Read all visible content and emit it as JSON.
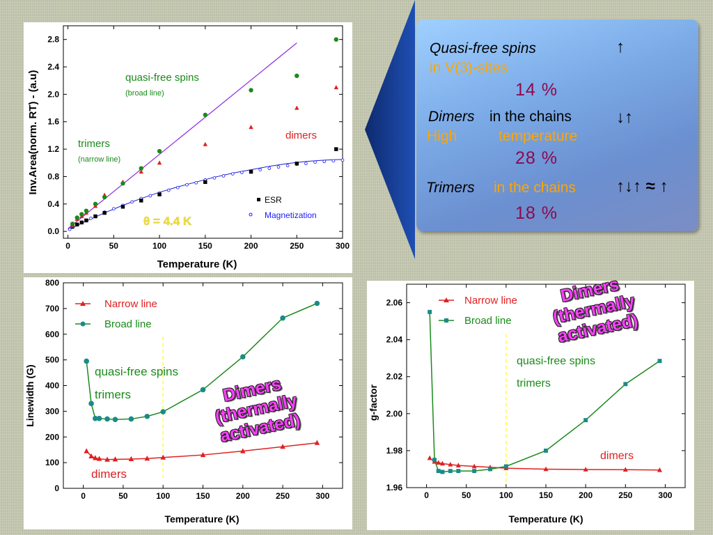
{
  "info_box": {
    "line1_italic": "Quasi-free spins",
    "line2_orange": "in V(3)-sites",
    "pct1": "14 %",
    "line3_italic": "Dimers",
    "line3_rest": "in the chains",
    "line4_a": "High",
    "line4_b": "temperature",
    "pct2": "28 %",
    "line5_italic": "Trimers",
    "line5_orange": "in the chains",
    "pct3": "18 %",
    "arrow1": "↑",
    "arrow2": "↓↑",
    "arrow3": "↑↓↑ ≈ ↑",
    "colors": {
      "italic": "#000000",
      "orange": "#ffa500",
      "percent": "#8b0a4e"
    }
  },
  "overlays": {
    "right": [
      "Dimers",
      "(thermally",
      "activated)"
    ],
    "middle": [
      "Dimers",
      "(thermally",
      "activated)"
    ],
    "color": "#ff40ff"
  },
  "chart_data": [
    {
      "type": "scatter",
      "xlabel": "Temperature (K)",
      "ylabel": "Inv.Area(norm. RT) - (a.u)",
      "xlim": [
        -5,
        300
      ],
      "ylim": [
        -0.1,
        3.0
      ],
      "xticks": [
        0,
        50,
        100,
        150,
        200,
        250,
        300
      ],
      "yticks": [
        0.0,
        0.4,
        0.8,
        1.2,
        1.6,
        2.0,
        2.4,
        2.8
      ],
      "annotations": {
        "quasi_free": "quasi-free spins",
        "broad": "(broad line)",
        "trimers": "trimers",
        "narrow": "(narrow line)",
        "dimers": "dimers",
        "theta": "θ = 4.4 K"
      },
      "legend": {
        "esr": "ESR",
        "mag": "Magnetization",
        "placement": "bottom-right"
      },
      "series": [
        {
          "name": "ESR",
          "marker": "square",
          "color": "#000000",
          "x": [
            5,
            10,
            15,
            20,
            30,
            40,
            60,
            80,
            100,
            150,
            200,
            250,
            293
          ],
          "y": [
            0.07,
            0.1,
            0.13,
            0.16,
            0.22,
            0.27,
            0.36,
            0.45,
            0.54,
            0.72,
            0.87,
            0.99,
            1.2
          ]
        },
        {
          "name": "Magnetization",
          "marker": "open-circle",
          "color": "#1a1aff",
          "x": [
            2,
            5,
            10,
            15,
            20,
            25,
            30,
            40,
            50,
            60,
            70,
            80,
            90,
            100,
            110,
            120,
            130,
            140,
            150,
            160,
            170,
            180,
            190,
            200,
            210,
            220,
            230,
            240,
            250,
            260,
            270,
            280,
            290,
            300
          ],
          "y": [
            0.03,
            0.06,
            0.1,
            0.13,
            0.16,
            0.19,
            0.22,
            0.28,
            0.33,
            0.38,
            0.43,
            0.48,
            0.52,
            0.56,
            0.6,
            0.64,
            0.68,
            0.71,
            0.75,
            0.78,
            0.81,
            0.84,
            0.86,
            0.88,
            0.9,
            0.92,
            0.94,
            0.96,
            0.98,
            0.99,
            1.01,
            1.02,
            1.03,
            1.04
          ]
        },
        {
          "name": "quasi-free spins",
          "marker": "circle",
          "color": "#1a8a1a",
          "x": [
            5,
            10,
            15,
            20,
            30,
            40,
            60,
            80,
            100,
            150,
            200,
            250,
            293
          ],
          "y": [
            0.11,
            0.2,
            0.25,
            0.3,
            0.4,
            0.5,
            0.7,
            0.92,
            1.17,
            1.7,
            2.06,
            2.27,
            2.8
          ]
        },
        {
          "name": "dimers",
          "marker": "triangle",
          "color": "#e02020",
          "x": [
            5,
            10,
            15,
            20,
            30,
            40,
            60,
            80,
            100,
            150,
            200,
            250,
            293
          ],
          "y": [
            0.08,
            0.18,
            0.22,
            0.27,
            0.37,
            0.53,
            0.72,
            0.87,
            1.0,
            1.27,
            1.52,
            1.8,
            2.1
          ]
        }
      ],
      "fits": [
        {
          "name": "linear fit",
          "color": "#8a2be2",
          "x": [
            0,
            250
          ],
          "y": [
            0.04,
            2.75
          ]
        },
        {
          "name": "magnetization fit",
          "color": "#1a1acc",
          "x": [
            0,
            20,
            40,
            60,
            80,
            100,
            120,
            140,
            160,
            180,
            200,
            220,
            240,
            260,
            280,
            300
          ],
          "y": [
            0.02,
            0.15,
            0.27,
            0.38,
            0.48,
            0.57,
            0.65,
            0.72,
            0.79,
            0.85,
            0.9,
            0.95,
            0.99,
            1.02,
            1.04,
            1.05
          ]
        }
      ]
    },
    {
      "type": "line",
      "xlabel": "Temperature (K)",
      "ylabel": "Linewidth (G)",
      "xlim": [
        -25,
        325
      ],
      "ylim": [
        0,
        800
      ],
      "xticks": [
        0,
        50,
        100,
        150,
        200,
        250,
        300
      ],
      "yticks": [
        0,
        100,
        200,
        300,
        400,
        500,
        600,
        700,
        800
      ],
      "annotations": {
        "quasi_free": "quasi-free spins",
        "trimers": "trimers",
        "dimers": "dimers"
      },
      "legend": {
        "placement": "top-left"
      },
      "vline_x": 100,
      "series": [
        {
          "name": "Narrow line",
          "marker": "triangle",
          "color": "#e02020",
          "x": [
            4,
            10,
            15,
            20,
            30,
            40,
            60,
            80,
            100,
            150,
            200,
            250,
            293
          ],
          "y": [
            145,
            125,
            118,
            115,
            112,
            113,
            114,
            116,
            120,
            130,
            145,
            162,
            177
          ]
        },
        {
          "name": "Broad line",
          "marker": "circle",
          "color": "#1a8a1a",
          "x": [
            4,
            10,
            15,
            20,
            30,
            40,
            60,
            80,
            100,
            150,
            200,
            250,
            293
          ],
          "y": [
            495,
            330,
            272,
            272,
            270,
            268,
            270,
            280,
            298,
            384,
            512,
            663,
            720
          ]
        }
      ]
    },
    {
      "type": "line",
      "xlabel": "Temperature (K)",
      "ylabel": "g-factor",
      "xlim": [
        -25,
        325
      ],
      "ylim": [
        1.96,
        2.07
      ],
      "xticks": [
        0,
        50,
        100,
        150,
        200,
        250,
        300
      ],
      "yticks": [
        1.96,
        1.98,
        2.0,
        2.02,
        2.04,
        2.06
      ],
      "annotations": {
        "quasi_free": "quasi-free spins",
        "trimers": "trimers",
        "dimers": "dimers"
      },
      "legend": {
        "placement": "top-left"
      },
      "vline_x": 100,
      "series": [
        {
          "name": "Narrow line",
          "marker": "triangle",
          "color": "#e02020",
          "x": [
            4,
            10,
            15,
            20,
            30,
            40,
            60,
            80,
            100,
            150,
            200,
            250,
            293
          ],
          "y": [
            1.976,
            1.974,
            1.9735,
            1.973,
            1.9725,
            1.972,
            1.9715,
            1.971,
            1.9705,
            1.97,
            1.9698,
            1.9697,
            1.9695
          ]
        },
        {
          "name": "Broad line",
          "marker": "square",
          "color": "#1a8a1a",
          "x": [
            4,
            10,
            15,
            20,
            30,
            40,
            60,
            80,
            100,
            150,
            200,
            250,
            293
          ],
          "y": [
            2.055,
            1.975,
            1.969,
            1.9685,
            1.969,
            1.969,
            1.969,
            1.97,
            1.9715,
            1.98,
            1.9965,
            2.016,
            2.0285
          ]
        }
      ]
    }
  ]
}
